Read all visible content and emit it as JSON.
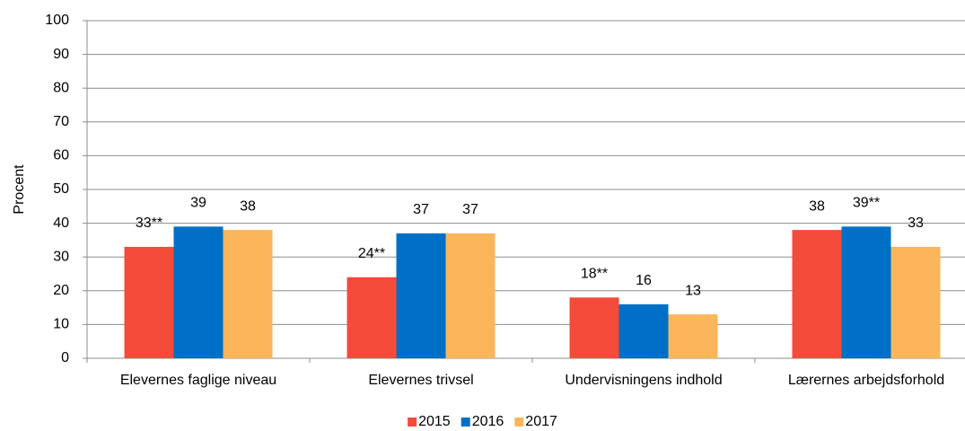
{
  "chart_data": {
    "type": "bar",
    "y_label": "Procent",
    "categories": [
      "Elevernes faglige niveau",
      "Elevernes trivsel",
      "Undervisningens indhold",
      "Lærernes arbejdsforhold"
    ],
    "series": [
      {
        "name": "2015",
        "color": "#f44b3a",
        "values": [
          33,
          24,
          18,
          38
        ],
        "value_labels": [
          "33**",
          "24**",
          "18**",
          "38"
        ]
      },
      {
        "name": "2016",
        "color": "#0070c6",
        "values": [
          39,
          37,
          16,
          39
        ],
        "value_labels": [
          "39",
          "37",
          "16",
          "39**"
        ]
      },
      {
        "name": "2017",
        "color": "#fbb65b",
        "values": [
          38,
          37,
          13,
          33
        ]
      }
    ],
    "ylim": [
      0,
      100
    ],
    "yticks": [
      0,
      10,
      20,
      30,
      40,
      50,
      60,
      70,
      80,
      90,
      100
    ],
    "grid": true,
    "legend": "bottom"
  }
}
